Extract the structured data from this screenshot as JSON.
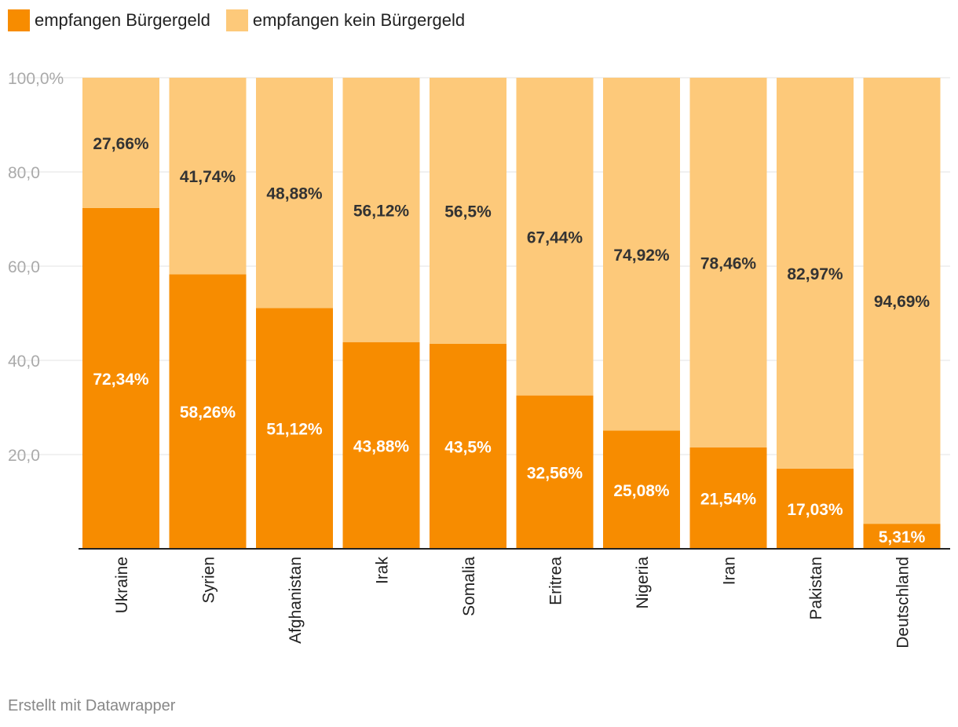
{
  "legend": {
    "items": [
      {
        "label": "empfangen Bürgergeld",
        "color": "#f78c00"
      },
      {
        "label": "empfangen kein Bürgergeld",
        "color": "#fdc97a"
      }
    ]
  },
  "footer": {
    "text": "Erstellt mit Datawrapper"
  },
  "chart_data": {
    "type": "bar",
    "stacked": true,
    "categories": [
      "Ukraine",
      "Syrien",
      "Afghanistan",
      "Irak",
      "Somalia",
      "Eritrea",
      "Nigeria",
      "Iran",
      "Pakistan",
      "Deutschland"
    ],
    "series": [
      {
        "name": "empfangen Bürgergeld",
        "color": "#f78c00",
        "values": [
          72.34,
          58.26,
          51.12,
          43.88,
          43.5,
          32.56,
          25.08,
          21.54,
          17.03,
          5.31
        ],
        "labels": [
          "72,34%",
          "58,26%",
          "51,12%",
          "43,88%",
          "43,5%",
          "32,56%",
          "25,08%",
          "21,54%",
          "17,03%",
          "5,31%"
        ]
      },
      {
        "name": "empfangen kein Bürgergeld",
        "color": "#fdc97a",
        "values": [
          27.66,
          41.74,
          48.88,
          56.12,
          56.5,
          67.44,
          74.92,
          78.46,
          82.97,
          94.69
        ],
        "labels": [
          "27,66%",
          "41,74%",
          "48,88%",
          "56,12%",
          "56,5%",
          "67,44%",
          "74,92%",
          "78,46%",
          "82,97%",
          "94,69%"
        ]
      }
    ],
    "yticks": [
      "20,0",
      "40,0",
      "60,0",
      "80,0",
      "100,0%"
    ],
    "ytick_values": [
      20,
      40,
      60,
      80,
      100
    ],
    "ylim": [
      0,
      100
    ],
    "grid": true,
    "legend_position": "top-left"
  }
}
